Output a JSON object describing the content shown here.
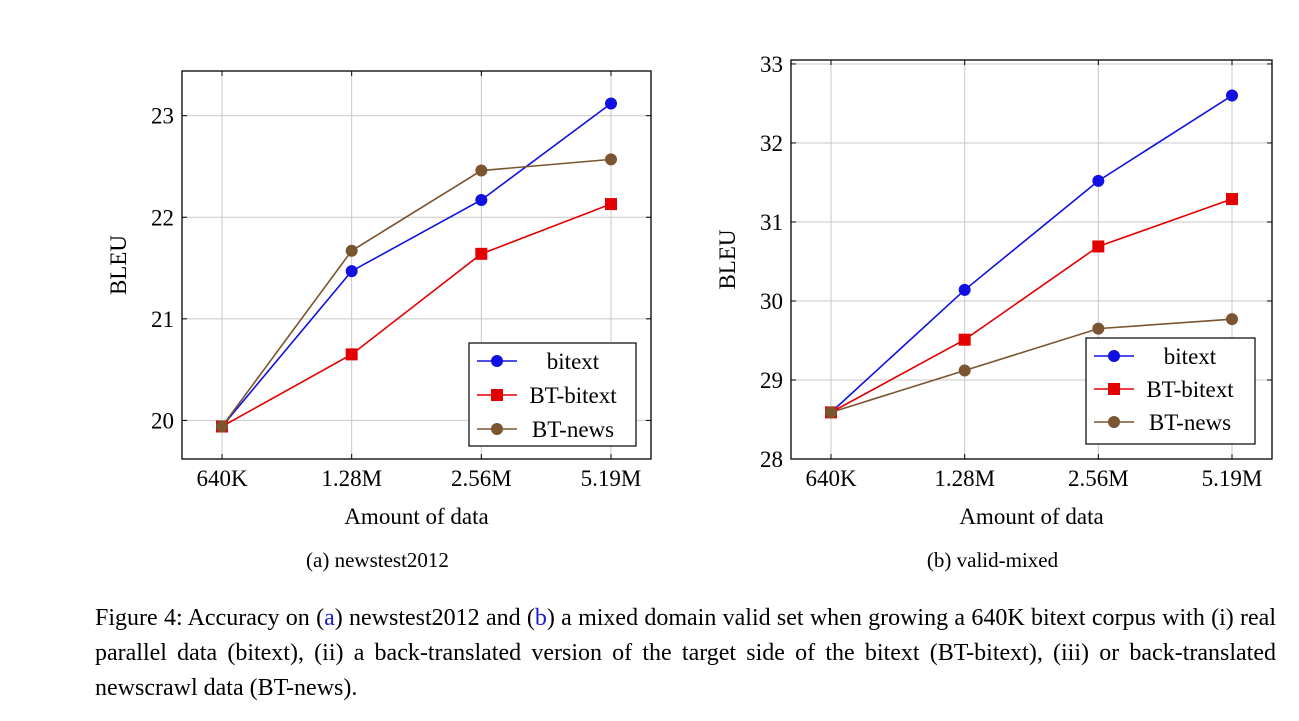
{
  "colors": {
    "bitext": "#1010e0",
    "BT-bitext": "#e30000",
    "BT-news": "#7b5430",
    "grid": "#c8c8c8",
    "caption_link": "#1b1bd0"
  },
  "chart_data": [
    {
      "type": "line",
      "subcaption_label": "(a)",
      "subcaption_text": "newstest2012",
      "xlabel": "Amount of data",
      "ylabel": "BLEU",
      "categories": [
        "640K",
        "1.28M",
        "2.56M",
        "5.19M"
      ],
      "ylim": [
        19.62,
        23.44
      ],
      "yticks": [
        20,
        21,
        22,
        23
      ],
      "grid": true,
      "legend_position": "bottom-right",
      "series": [
        {
          "name": "bitext",
          "marker": "circle",
          "values": [
            19.94,
            21.47,
            22.17,
            23.12
          ]
        },
        {
          "name": "BT-bitext",
          "marker": "square",
          "values": [
            19.94,
            20.65,
            21.64,
            22.13
          ]
        },
        {
          "name": "BT-news",
          "marker": "circle",
          "values": [
            19.94,
            21.67,
            22.46,
            22.57
          ]
        }
      ]
    },
    {
      "type": "line",
      "subcaption_label": "(b)",
      "subcaption_text": "valid-mixed",
      "xlabel": "Amount of data",
      "ylabel": "BLEU",
      "categories": [
        "640K",
        "1.28M",
        "2.56M",
        "5.19M"
      ],
      "ylim": [
        28,
        33.05
      ],
      "yticks": [
        28,
        29,
        30,
        31,
        32,
        33
      ],
      "grid": true,
      "legend_position": "bottom-right",
      "series": [
        {
          "name": "bitext",
          "marker": "circle",
          "values": [
            28.59,
            30.14,
            31.52,
            32.6
          ]
        },
        {
          "name": "BT-bitext",
          "marker": "square",
          "values": [
            28.59,
            29.51,
            30.69,
            31.29
          ]
        },
        {
          "name": "BT-news",
          "marker": "circle",
          "values": [
            28.59,
            29.12,
            29.65,
            29.77
          ]
        }
      ]
    }
  ],
  "figure_caption": {
    "prefix": "Figure 4: Accuracy on (",
    "link_a": "a",
    "mid1": ") newstest2012 and (",
    "link_b": "b",
    "rest": ") a mixed domain valid set when growing a 640K bitext corpus with (i) real parallel data (bitext), (ii) a back-translated version of the target side of the bitext (BT-bitext), (iii) or back-translated newscrawl data (BT-news)."
  }
}
